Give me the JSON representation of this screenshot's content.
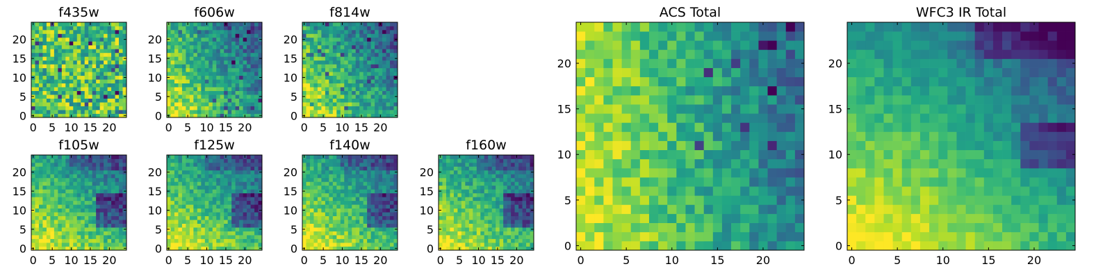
{
  "chart_data": [
    {
      "type": "heatmap",
      "title": "f435w",
      "colormap": "viridis",
      "grid": false,
      "xlim": [
        -0.5,
        24.5
      ],
      "ylim": [
        -0.5,
        24.5
      ],
      "xticks": [
        0,
        5,
        10,
        15,
        20
      ],
      "yticks": [
        0,
        5,
        10,
        15,
        20
      ],
      "size": 25,
      "trend": "uniform-noisy"
    },
    {
      "type": "heatmap",
      "title": "f606w",
      "colormap": "viridis",
      "grid": false,
      "xlim": [
        -0.5,
        24.5
      ],
      "ylim": [
        -0.5,
        24.5
      ],
      "xticks": [
        0,
        5,
        10,
        15,
        20
      ],
      "yticks": [
        0,
        5,
        10,
        15,
        20
      ],
      "size": 25,
      "trend": "bright-lower-left"
    },
    {
      "type": "heatmap",
      "title": "f814w",
      "colormap": "viridis",
      "grid": false,
      "xlim": [
        -0.5,
        24.5
      ],
      "ylim": [
        -0.5,
        24.5
      ],
      "xticks": [
        0,
        5,
        10,
        15,
        20
      ],
      "yticks": [
        0,
        5,
        10,
        15,
        20
      ],
      "size": 25,
      "trend": "bright-lower-left"
    },
    {
      "type": "heatmap",
      "title": "f105w",
      "colormap": "viridis",
      "grid": false,
      "xlim": [
        -0.5,
        24.5
      ],
      "ylim": [
        -0.5,
        24.5
      ],
      "xticks": [
        0,
        5,
        10,
        15,
        20
      ],
      "yticks": [
        0,
        5,
        10,
        15,
        20
      ],
      "size": 25,
      "trend": "bright-lower-left, dark-right"
    },
    {
      "type": "heatmap",
      "title": "f125w",
      "colormap": "viridis",
      "grid": false,
      "xlim": [
        -0.5,
        24.5
      ],
      "ylim": [
        -0.5,
        24.5
      ],
      "xticks": [
        0,
        5,
        10,
        15,
        20
      ],
      "yticks": [
        0,
        5,
        10,
        15,
        20
      ],
      "size": 25,
      "trend": "bright-lower-left, dark-right"
    },
    {
      "type": "heatmap",
      "title": "f140w",
      "colormap": "viridis",
      "grid": false,
      "xlim": [
        -0.5,
        24.5
      ],
      "ylim": [
        -0.5,
        24.5
      ],
      "xticks": [
        0,
        5,
        10,
        15,
        20
      ],
      "yticks": [
        0,
        5,
        10,
        15,
        20
      ],
      "size": 25,
      "trend": "bright-lower-left, dark-right"
    },
    {
      "type": "heatmap",
      "title": "f160w",
      "colormap": "viridis",
      "grid": false,
      "xlim": [
        -0.5,
        24.5
      ],
      "ylim": [
        -0.5,
        24.5
      ],
      "xticks": [
        0,
        5,
        10,
        15,
        20
      ],
      "yticks": [
        0,
        5,
        10,
        15,
        20
      ],
      "size": 25,
      "trend": "bright-lower-left, dark-right"
    },
    {
      "type": "heatmap",
      "title": "ACS Total",
      "colormap": "viridis",
      "grid": false,
      "xlim": [
        -0.5,
        24.5
      ],
      "ylim": [
        -0.5,
        24.5
      ],
      "xticks": [
        0,
        5,
        10,
        15,
        20
      ],
      "yticks": [
        0,
        5,
        10,
        15,
        20
      ],
      "size": 25,
      "trend": "bright-left, dark-right"
    },
    {
      "type": "heatmap",
      "title": "WFC3 IR Total",
      "colormap": "viridis",
      "grid": false,
      "xlim": [
        -0.5,
        24.5
      ],
      "ylim": [
        -0.5,
        24.5
      ],
      "xticks": [
        0,
        5,
        10,
        15,
        20
      ],
      "yticks": [
        0,
        5,
        10,
        15,
        20
      ],
      "size": 25,
      "trend": "bright-lower-left, dark-upper-right"
    }
  ]
}
